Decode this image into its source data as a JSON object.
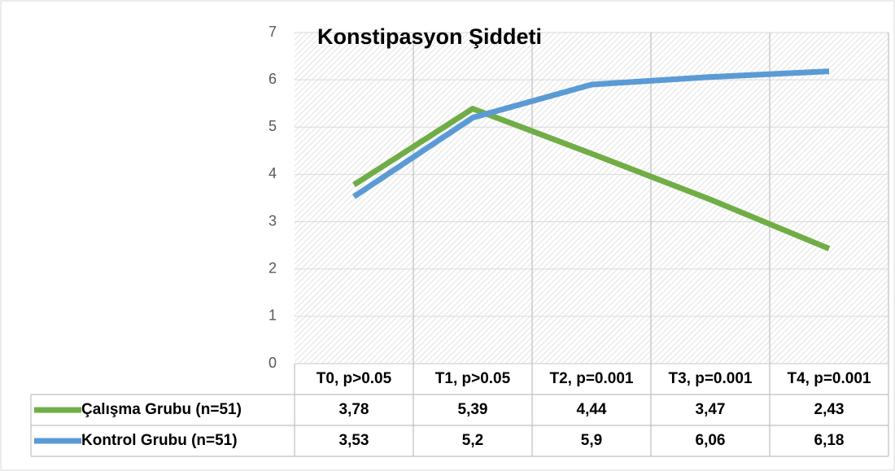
{
  "chart_data": {
    "type": "line",
    "title": "Konstipasyon Şiddeti",
    "categories": [
      "T0,  p>0.05",
      "T1,  p>0.05",
      "T2, p=0.001",
      "T3, p=0.001",
      "T4, p=0.001"
    ],
    "series": [
      {
        "name": "Çalışma Grubu (n=51)",
        "color": "#70ad47",
        "values": [
          3.78,
          5.39,
          4.44,
          3.47,
          2.43
        ],
        "value_labels": [
          "3,78",
          "5,39",
          "4,44",
          "3,47",
          "2,43"
        ]
      },
      {
        "name": "Kontrol Grubu (n=51)",
        "color": "#5b9bd5",
        "values": [
          3.53,
          5.2,
          5.9,
          6.06,
          6.18
        ],
        "value_labels": [
          "3,53",
          "5,2",
          "5,9",
          "6,06",
          "6,18"
        ]
      }
    ],
    "ylim": [
      0,
      7
    ],
    "yticks": [
      0,
      1,
      2,
      3,
      4,
      5,
      6,
      7
    ],
    "grid": true
  }
}
